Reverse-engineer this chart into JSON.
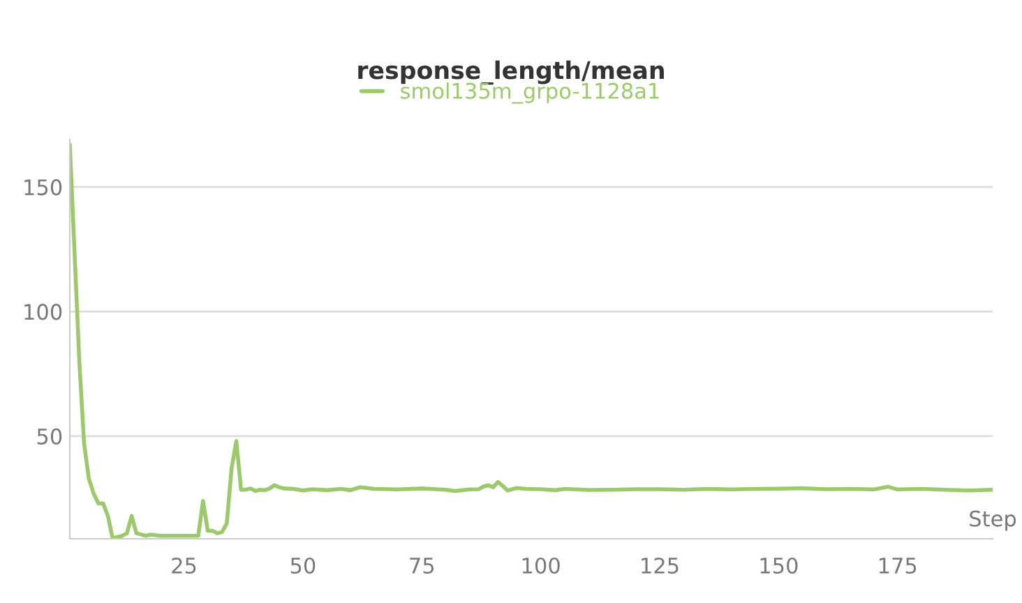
{
  "chart_data": {
    "type": "line",
    "title": "response_length/mean",
    "xlabel": "Step",
    "x": [
      1,
      3,
      4,
      5,
      6,
      7,
      8,
      9,
      10,
      12,
      13,
      14,
      15,
      16,
      17,
      18,
      20,
      22,
      25,
      28,
      29,
      30,
      31,
      32,
      33,
      34,
      35,
      36,
      37,
      38,
      39,
      40,
      41,
      42,
      43,
      44,
      45,
      46,
      48,
      50,
      52,
      55,
      58,
      60,
      62,
      65,
      70,
      75,
      80,
      82,
      85,
      87,
      88,
      89,
      90,
      91,
      92,
      93,
      95,
      97,
      100,
      103,
      105,
      110,
      115,
      120,
      125,
      130,
      135,
      140,
      145,
      150,
      155,
      160,
      165,
      170,
      173,
      175,
      180,
      185,
      190,
      195
    ],
    "series": [
      {
        "name": "smol135m_grpo-1128a1",
        "color": "#9cc96b",
        "values": [
          167,
          80,
          47,
          33,
          27,
          23,
          23,
          18,
          9,
          10,
          11,
          18,
          11,
          10.5,
          10,
          10.5,
          10,
          10,
          10,
          10,
          24,
          12,
          12,
          11,
          11.5,
          15,
          37,
          48,
          28.5,
          28.5,
          29,
          28,
          28.5,
          28.3,
          29,
          30.3,
          29.5,
          29,
          28.8,
          28.2,
          28.7,
          28.3,
          28.8,
          28.3,
          29.5,
          28.8,
          28.6,
          29,
          28.5,
          28,
          28.6,
          28.7,
          29.8,
          30.3,
          29.5,
          31.6,
          30,
          28.2,
          29.2,
          28.8,
          28.7,
          28.3,
          28.8,
          28.4,
          28.5,
          28.7,
          28.7,
          28.5,
          28.8,
          28.6,
          28.8,
          28.9,
          29.1,
          28.7,
          28.8,
          28.6,
          29.7,
          28.6,
          28.8,
          28.5,
          28.2,
          28.5
        ]
      }
    ],
    "xlim": [
      1,
      195
    ],
    "ylim": [
      8.8,
      169
    ],
    "xticks": [
      25,
      50,
      75,
      100,
      125,
      150,
      175
    ],
    "yticks": [
      50,
      100,
      150
    ],
    "grid": "y",
    "legend": "top",
    "marker": "none",
    "line_style": "solid"
  }
}
